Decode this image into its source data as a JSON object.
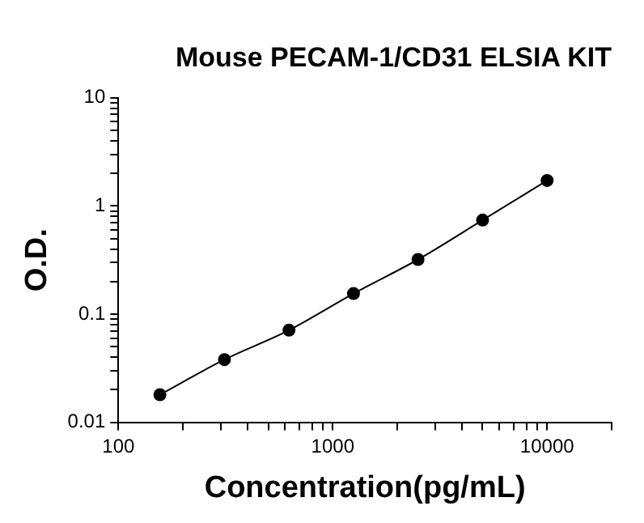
{
  "chart_data": {
    "type": "line",
    "title": "Mouse PECAM-1/CD31 ELSIA KIT",
    "xlabel": "Concentration(pg/mL)",
    "ylabel": "O.D.",
    "x": [
      156.25,
      312.5,
      625,
      1250,
      2500,
      5000,
      10000
    ],
    "series": [
      {
        "color": "#000000",
        "values": [
          0.018,
          0.038,
          0.071,
          0.155,
          0.32,
          0.74,
          1.72
        ]
      }
    ],
    "log": "xy",
    "xlim": [
      100,
      20000
    ],
    "ylim": [
      0.01,
      10
    ],
    "xticks": [
      100,
      {
        "value": 200,
        "label": null
      },
      {
        "value": 300,
        "label": null
      },
      {
        "value": 400,
        "label": null
      },
      {
        "value": 500,
        "label": null
      },
      {
        "value": 600,
        "label": null
      },
      {
        "value": 700,
        "label": null
      },
      {
        "value": 800,
        "label": null
      },
      {
        "value": 900,
        "label": null
      },
      1000,
      {
        "value": 2000,
        "label": null
      },
      {
        "value": 3000,
        "label": null
      },
      {
        "value": 4000,
        "label": null
      },
      {
        "value": 5000,
        "label": null
      },
      {
        "value": 6000,
        "label": null
      },
      {
        "value": 7000,
        "label": null
      },
      {
        "value": 8000,
        "label": null
      },
      {
        "value": 9000,
        "label": null
      },
      10000,
      {
        "value": 20000,
        "label": null
      }
    ],
    "yticks": [
      0.01,
      {
        "value": 0.02,
        "label": null
      },
      {
        "value": 0.03,
        "label": null
      },
      {
        "value": 0.04,
        "label": null
      },
      {
        "value": 0.05,
        "label": null
      },
      {
        "value": 0.06,
        "label": null
      },
      {
        "value": 0.07,
        "label": null
      },
      {
        "value": 0.08,
        "label": null
      },
      {
        "value": 0.09,
        "label": null
      },
      0.1,
      {
        "value": 0.2,
        "label": null
      },
      {
        "value": 0.3,
        "label": null
      },
      {
        "value": 0.4,
        "label": null
      },
      {
        "value": 0.5,
        "label": null
      },
      {
        "value": 0.6,
        "label": null
      },
      {
        "value": 0.7,
        "label": null
      },
      {
        "value": 0.8,
        "label": null
      },
      {
        "value": 0.9,
        "label": null
      },
      1,
      {
        "value": 2,
        "label": null
      },
      {
        "value": 3,
        "label": null
      },
      {
        "value": 4,
        "label": null
      },
      {
        "value": 5,
        "label": null
      },
      {
        "value": 6,
        "label": null
      },
      {
        "value": 7,
        "label": null
      },
      {
        "value": 8,
        "label": null
      },
      {
        "value": 9,
        "label": null
      },
      10
    ],
    "grid": false,
    "legend": false,
    "marker": "circle",
    "line_style": "solid"
  }
}
